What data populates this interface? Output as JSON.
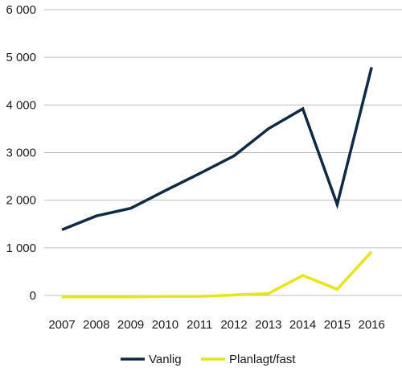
{
  "chart_data": {
    "type": "line",
    "title": "",
    "xlabel": "",
    "ylabel": "",
    "categories": [
      "2007",
      "2008",
      "2009",
      "2010",
      "2011",
      "2012",
      "2013",
      "2014",
      "2015",
      "2016"
    ],
    "ylim": [
      0,
      6000
    ],
    "yticks": [
      0,
      1000,
      2000,
      3000,
      4000,
      5000,
      6000
    ],
    "ytick_labels": [
      "0",
      "1 000",
      "2 000",
      "3 000",
      "4 000",
      "5 000",
      "6 000"
    ],
    "grid": true,
    "legend_position": "bottom",
    "series": [
      {
        "name": "Vanlig",
        "color": "#0f2a44",
        "values": [
          1380,
          1670,
          1830,
          2200,
          2560,
          2930,
          3500,
          3920,
          1910,
          4790
        ]
      },
      {
        "name": "Planlagt/fast",
        "color": "#e8e41a",
        "values": [
          -30,
          -30,
          -30,
          -20,
          -20,
          10,
          40,
          420,
          130,
          920
        ]
      }
    ]
  }
}
